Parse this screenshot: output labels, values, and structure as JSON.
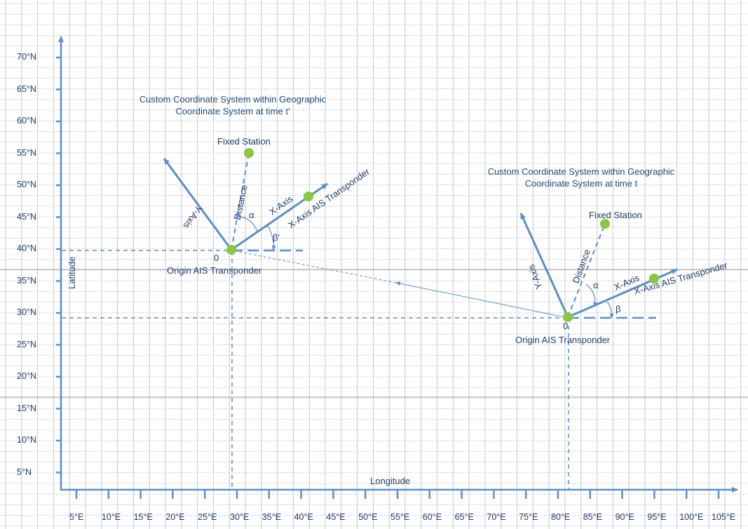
{
  "lat_ticks": [
    "70°N",
    "65°N",
    "60°N",
    "55°N",
    "50°N",
    "45°N",
    "40°N",
    "35°N",
    "30°N",
    "25°N",
    "20°N",
    "15°N",
    "10°N",
    "5°N"
  ],
  "lon_ticks": [
    "5°E",
    "10°E",
    "15°E",
    "20°E",
    "25°E",
    "30°E",
    "35°E",
    "40°E",
    "45°E",
    "50°E",
    "55°E",
    "60°E",
    "65°E",
    "70°E",
    "75°E",
    "80°E",
    "85°E",
    "90°E",
    "95°E",
    "100°E",
    "105°E"
  ],
  "axes": {
    "x_label": "Longitude",
    "y_label": "Latitude"
  },
  "system_t_prime": {
    "title_line1": "Custom Coordinate System within Geographic",
    "title_line2": "Coordinate System  at time t'",
    "fixed_station": "Fixed Station",
    "distance": "Distance",
    "y_axis": "Y-Axis",
    "x_axis": "X-Axis",
    "x_axis_ais": "X-Axis AIS Transponder",
    "alpha": "α",
    "beta": "β'",
    "origin_zero": "0",
    "origin": "Origin AIS Transponder"
  },
  "system_t": {
    "title_line1": "Custom Coordinate System within Geographic",
    "title_line2": "Coordinate System  at time t",
    "fixed_station": "Fixed Station",
    "distance": "Distance",
    "y_axis": "Y-Axis",
    "x_axis": "X-Axis",
    "x_axis_ais": "X-Axis AIS Transponder",
    "alpha": "α",
    "beta": "β",
    "origin_zero": "0",
    "origin": "Origin AIS Transponder"
  },
  "colors": {
    "line": "#5b8fc7",
    "point": "#8dc63f",
    "grid": "#c8c8c8",
    "text": "#1f3d6b"
  }
}
